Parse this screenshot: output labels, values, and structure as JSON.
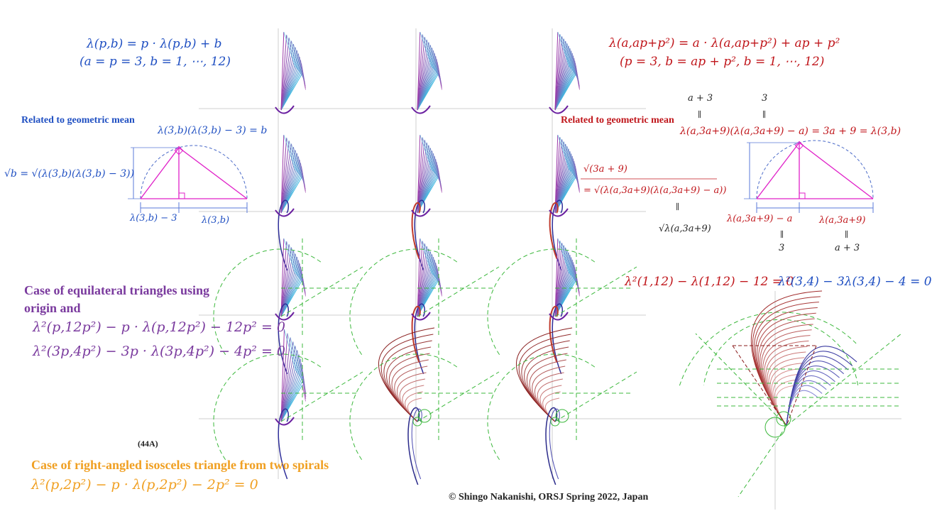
{
  "formulas": {
    "blue_main": "λ(p,b) = p · λ(p,b) + b",
    "blue_params": "(a = p = 3, b = 1, ⋯, 12)",
    "blue_related": "Related to geometric mean",
    "blue_product": "λ(3,b)(λ(3,b) − 3) = b",
    "blue_sqrt": "√b = √(λ(3,b)(λ(3,b) − 3))",
    "blue_seg_left": "λ(3,b) − 3",
    "blue_seg_right": "λ(3,b)",
    "red_main": "λ(a,ap+p²) = a · λ(a,ap+p²) + ap + p²",
    "red_params": "(p = 3, b = ap + p², b = 1, ⋯, 12)",
    "red_related": "Related to geometric mean",
    "red_top_a3": "a + 3",
    "red_top_3": "3",
    "red_eq_sign1": "∥",
    "red_eq_sign2": "∥",
    "red_product": "λ(a,3a+9)(λ(a,3a+9) − a) = 3a + 9 = λ(3,b)",
    "red_sqrt_top": "√(3a + 9)",
    "red_sqrt_eq": "= √(λ(a,3a+9)(λ(a,3a+9) − a))",
    "red_eq_sign3": "∥",
    "red_sqrt_bottom": "√λ(a,3a+9)",
    "red_seg_left": "λ(a,3a+9) − a",
    "red_seg_right": "λ(a,3a+9)",
    "red_eq_sign4": "∥",
    "red_eq_sign5": "∥",
    "red_bottom_3": "3",
    "red_bottom_a3": "a + 3",
    "red_quadratic": "λ²(1,12) − λ(1,12) − 12 = 0",
    "blue_quadratic": "λ²(3,4) − 3λ(3,4) − 4 = 0",
    "purple_title_1": "Case of equilateral  triangles  using",
    "purple_title_2": "origin  and",
    "purple_eq_1": "λ²(p,12p²) − p · λ(p,12p²) − 12p² = 0",
    "purple_eq_2": "λ²(3p,4p²) − 3p · λ(3p,4p²) − 4p² = 0",
    "figure_id": "(44A)",
    "orange_title": "Case of right-angled  isosceles triangle  from two spirals",
    "orange_eq": "λ²(p,2p²) − p · λ(p,2p²) − 2p² = 0",
    "copyright": "© Shingo  Nakanishi, ORSJ Spring  2022, Japan"
  },
  "colors": {
    "blue": "#1f4fc2",
    "red": "#c0161b",
    "purple": "#7a3a9e",
    "orange": "#f0a023",
    "magenta": "#e020c8",
    "green_dashed": "#3cb83c",
    "cyan_lines": "#40b8e0"
  }
}
